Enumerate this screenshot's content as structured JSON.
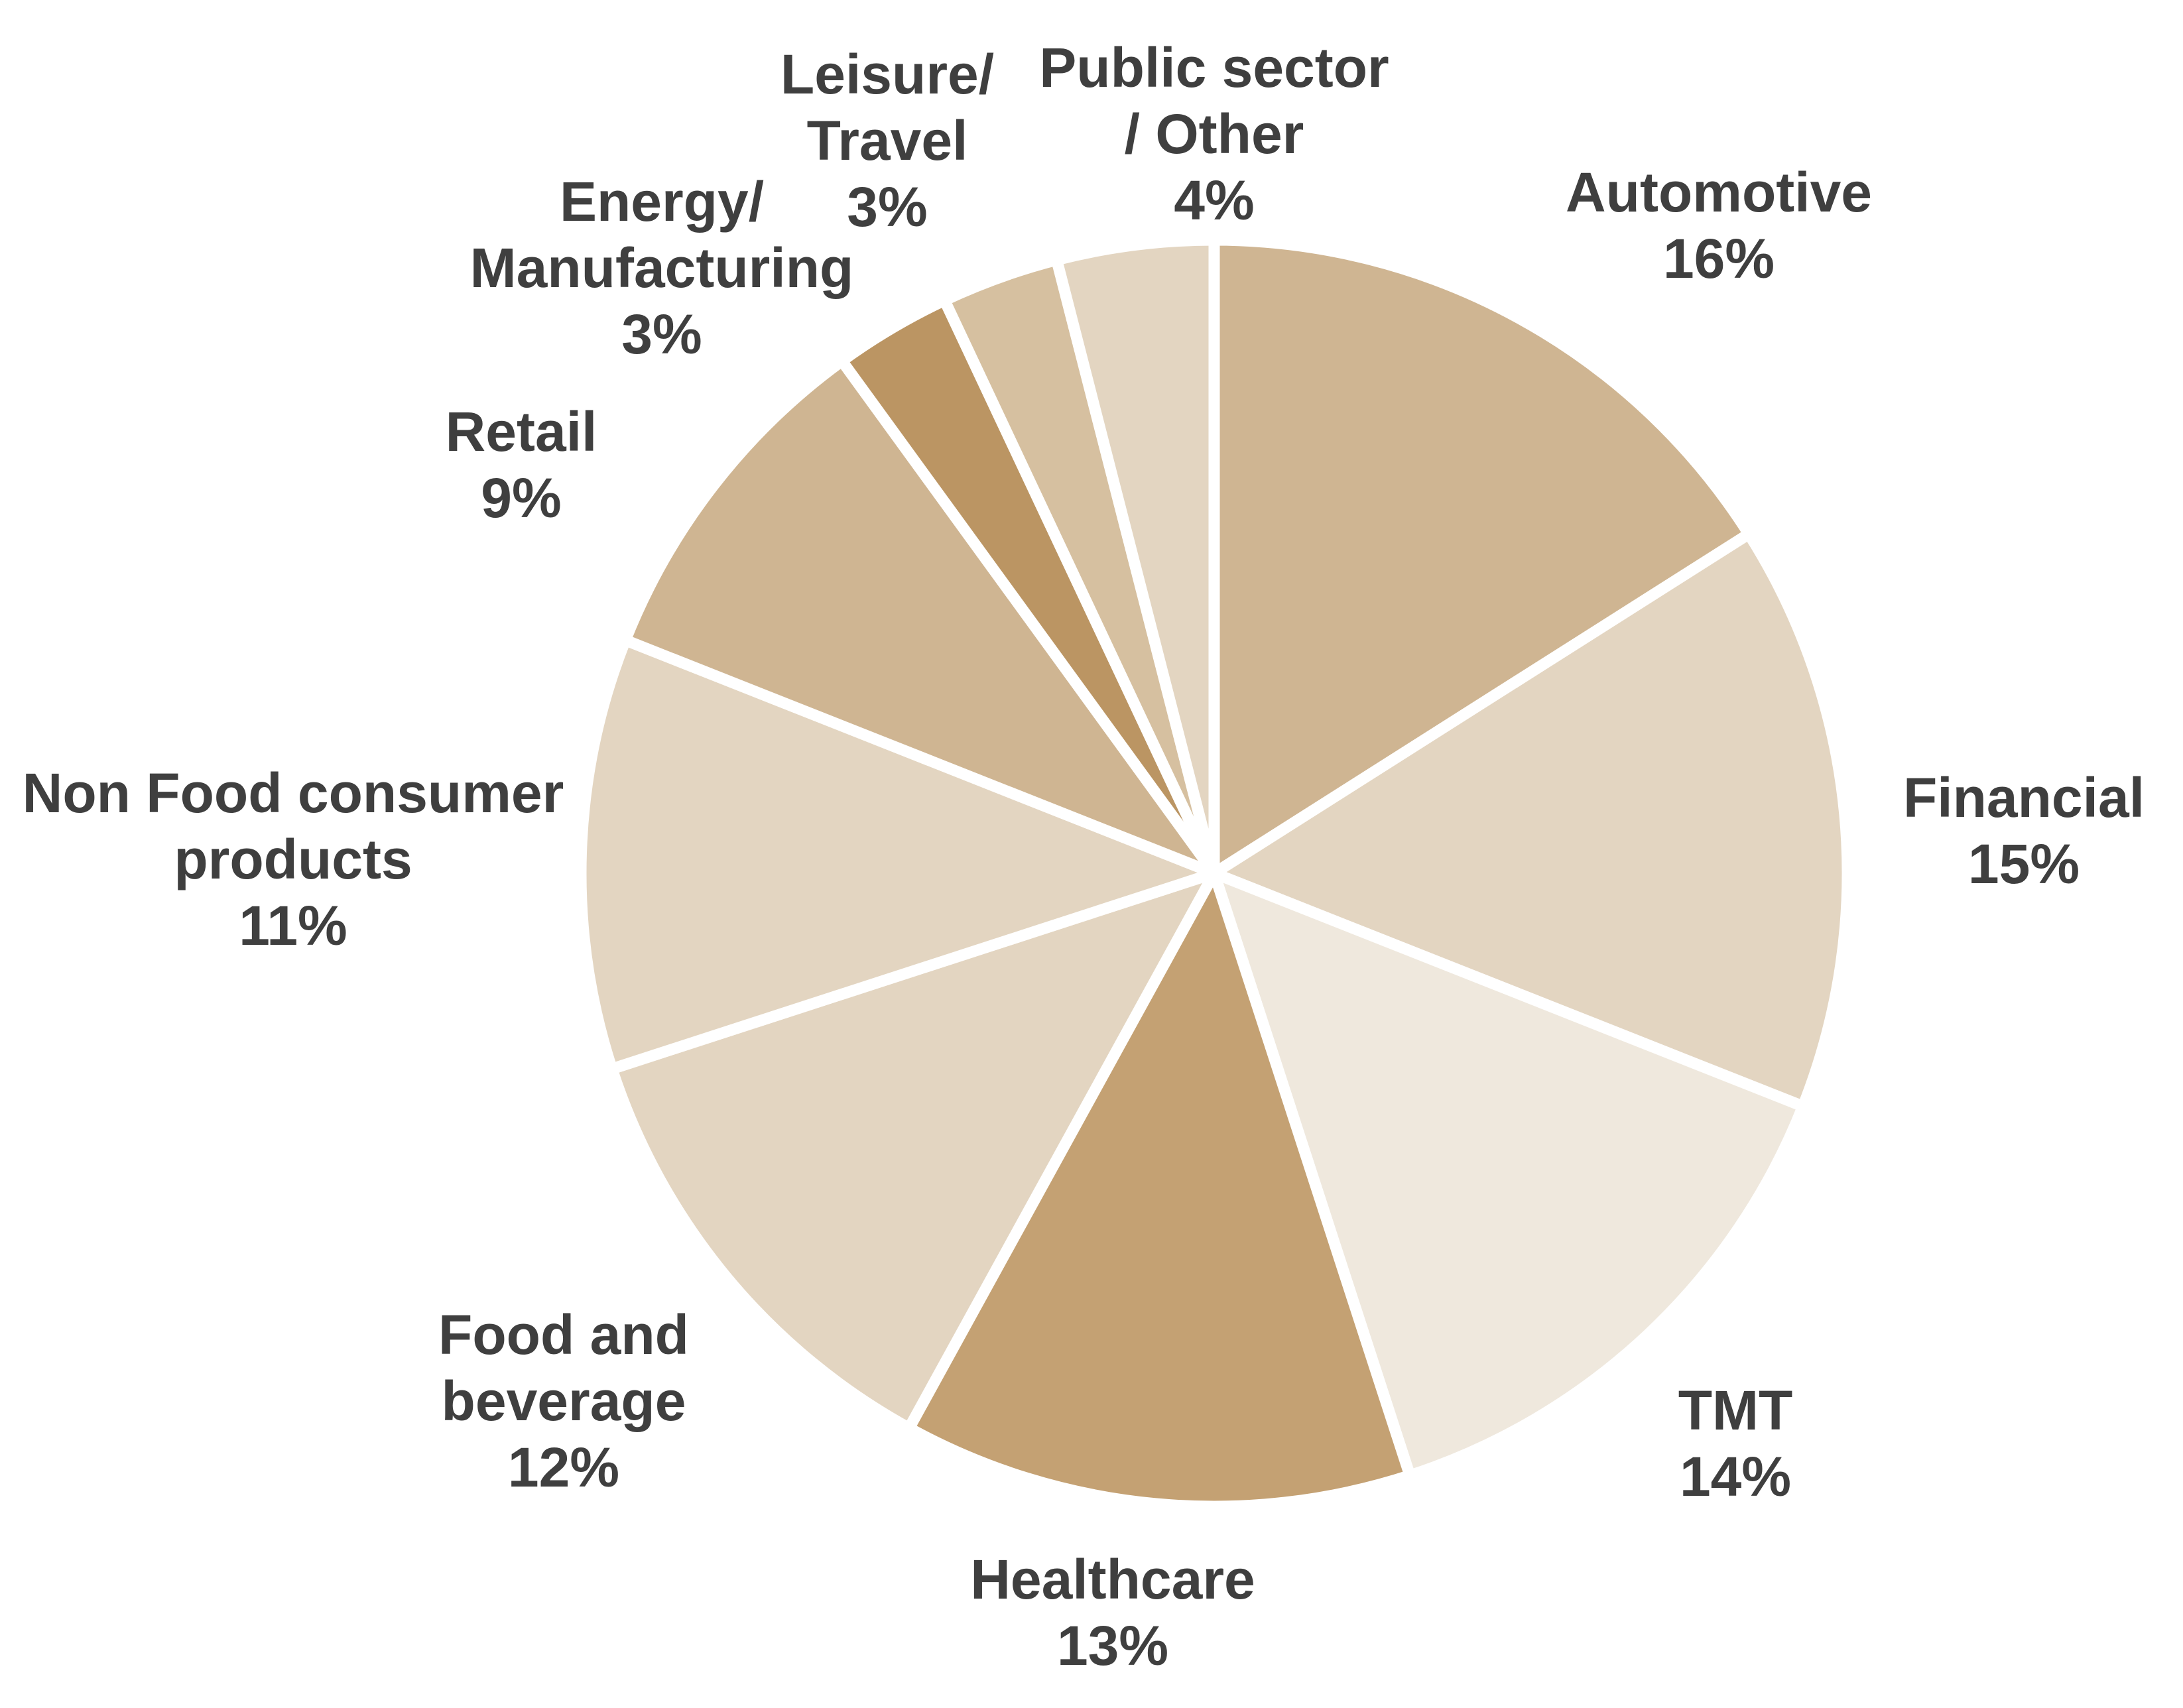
{
  "chart_data": {
    "type": "pie",
    "categories": [
      "Automotive",
      "Financial",
      "TMT",
      "Healthcare",
      "Food and\nbeverage",
      "Non Food consumer\nproducts",
      "Retail",
      "Energy/\nManufacturing",
      "Leisure/\nTravel",
      "Public sector\n/ Other"
    ],
    "values": [
      16,
      15,
      14,
      13,
      12,
      11,
      9,
      3,
      3,
      4
    ],
    "value_labels": [
      "16%",
      "15%",
      "14%",
      "13%",
      "12%",
      "11%",
      "9%",
      "3%",
      "3%",
      "4%"
    ],
    "colors": [
      "#cfb592",
      "#e3d5c1",
      "#efe8dd",
      "#c4a173",
      "#e3d5c1",
      "#e3d5c1",
      "#cfb592",
      "#bb9563",
      "#d6c0a0",
      "#e3d5c1"
    ]
  }
}
